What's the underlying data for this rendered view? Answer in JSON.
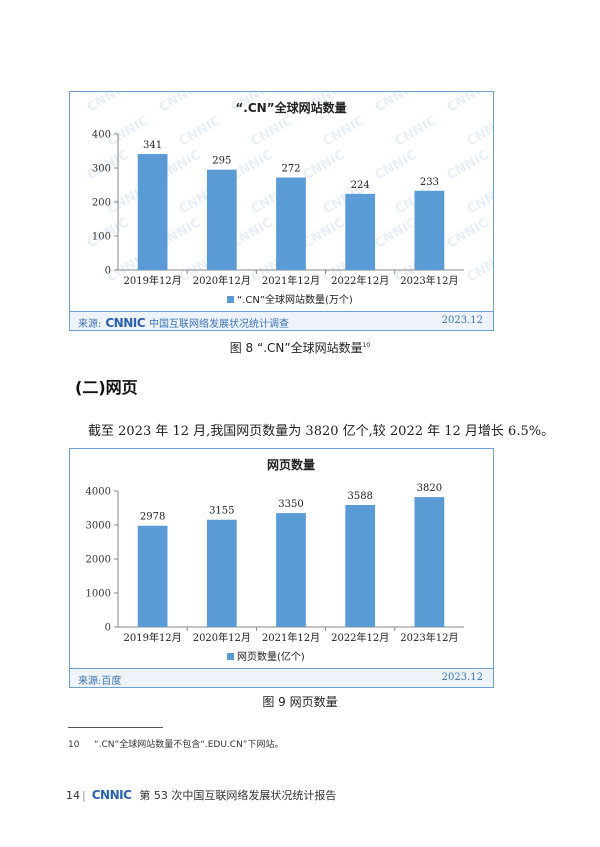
{
  "figures": [
    {
      "source": {
        "prefix": "来源:",
        "logo": "CNNIC",
        "text": "中国互联网络发展状况统计调查",
        "date": "2023.12"
      },
      "caption": {
        "text": "图 8 “.CN”全球网站数量",
        "sup": "10"
      },
      "watermark": "CNNIC",
      "chart_data": {
        "type": "bar",
        "title": "“.CN”全球网站数量",
        "categories": [
          "2019年12月",
          "2020年12月",
          "2021年12月",
          "2022年12月",
          "2023年12月"
        ],
        "series": [
          {
            "name": "“.CN”全球网站数量(万个)",
            "values": [
              341,
              295,
              272,
              224,
              233
            ]
          }
        ],
        "ylim": [
          0,
          400
        ],
        "yticks": [
          0,
          100,
          200,
          300,
          400
        ],
        "data_labels": true,
        "legend": "bottom",
        "color": "#5b9bd5",
        "grid": false
      }
    },
    {
      "source": {
        "prefix": "来源:",
        "logo": "",
        "text": "百度",
        "date": "2023.12"
      },
      "caption": {
        "text": "图 9 网页数量",
        "sup": ""
      },
      "watermark": "",
      "chart_data": {
        "type": "bar",
        "title": "网页数量",
        "categories": [
          "2019年12月",
          "2020年12月",
          "2021年12月",
          "2022年12月",
          "2023年12月"
        ],
        "series": [
          {
            "name": "网页数量(亿个)",
            "values": [
              2978,
              3155,
              3350,
              3588,
              3820
            ]
          }
        ],
        "ylim": [
          0,
          4000
        ],
        "yticks": [
          0,
          1000,
          2000,
          3000,
          4000
        ],
        "data_labels": true,
        "legend": "bottom",
        "color": "#5b9bd5",
        "grid": false
      }
    }
  ],
  "section_heading": "(二)网页",
  "paragraph": "截至 2023 年 12 月,我国网页数量为 3820 亿个,较 2022 年 12 月增长 6.5%。",
  "footnote": {
    "num": "10",
    "text": "“.CN”全球网站数量不包含“.EDU.CN”下网站。"
  },
  "footer": {
    "page": "14",
    "sep": "|",
    "logo": "CNNIC",
    "title": "第 53 次中国互联网络发展状况统计报告"
  }
}
